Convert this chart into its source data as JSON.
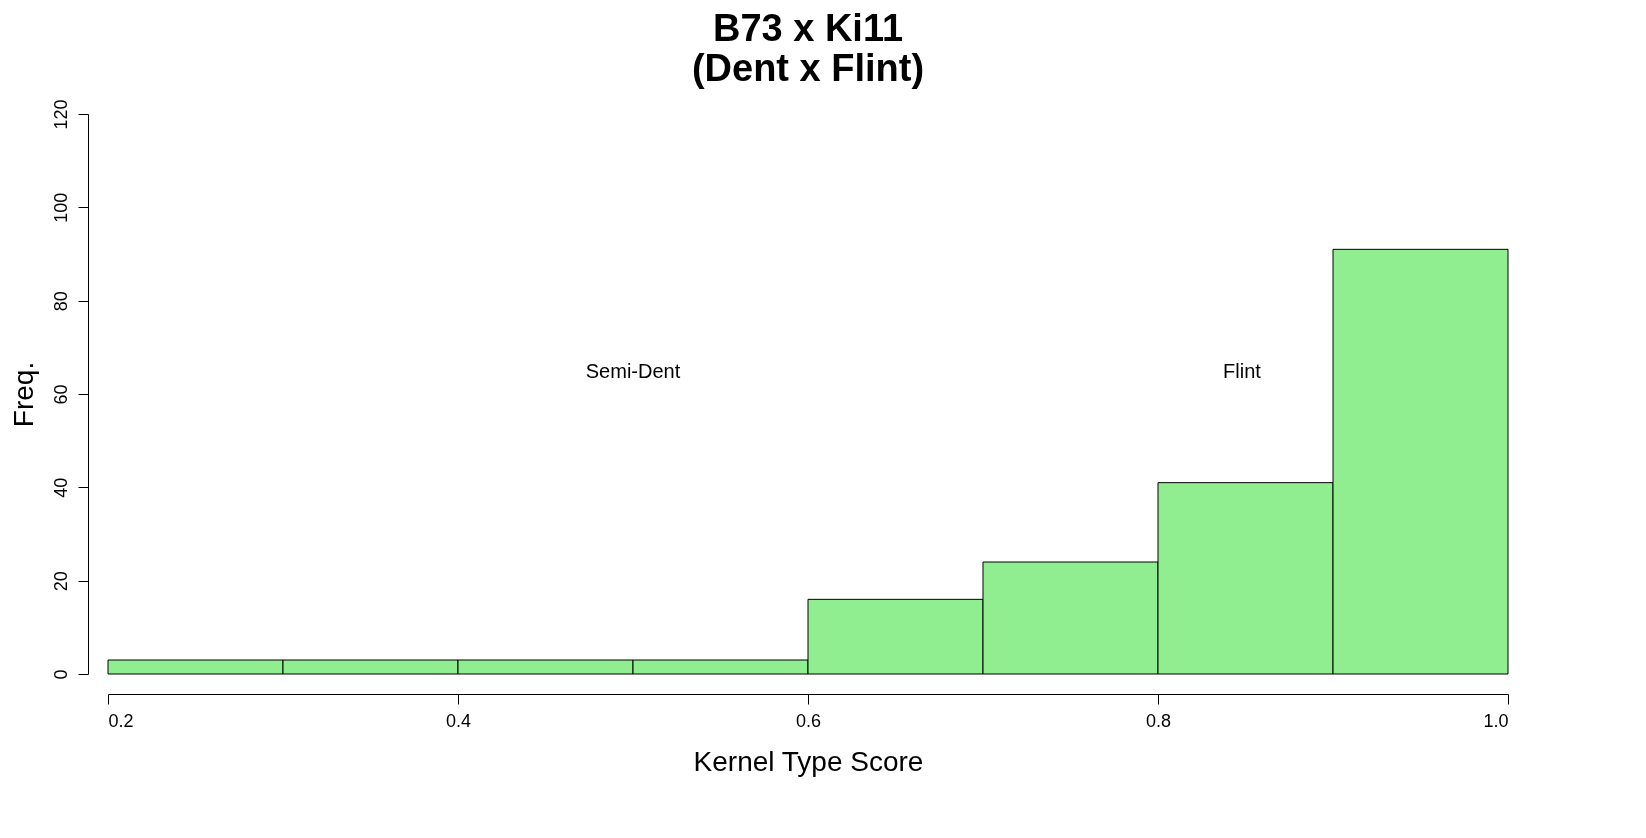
{
  "chart_data": {
    "type": "histogram",
    "title": "B73 x Ki11\n(Dent x Flint)",
    "xlabel": "Kernel Type Score",
    "ylabel": "Freq.",
    "bins": [
      0.2,
      0.3,
      0.4,
      0.5,
      0.6,
      0.7,
      0.8,
      0.9,
      1.0
    ],
    "values": [
      3,
      3,
      3,
      3,
      16,
      24,
      41,
      91
    ],
    "color": "#90ee90",
    "xlim": [
      0.2,
      1.0
    ],
    "xticks": [
      {
        "value": 0.2,
        "label": "0.2"
      },
      {
        "value": 0.4,
        "label": "0.4"
      },
      {
        "value": 0.6,
        "label": "0.6"
      },
      {
        "value": 0.8,
        "label": "0.8"
      },
      {
        "value": 1.0,
        "label": "1.0"
      }
    ],
    "ylim": [
      0,
      120
    ],
    "yticks": [
      0,
      20,
      40,
      60,
      80,
      100,
      120
    ],
    "grid": false,
    "annotations": [
      "Semi-Dent",
      "Flint"
    ]
  }
}
